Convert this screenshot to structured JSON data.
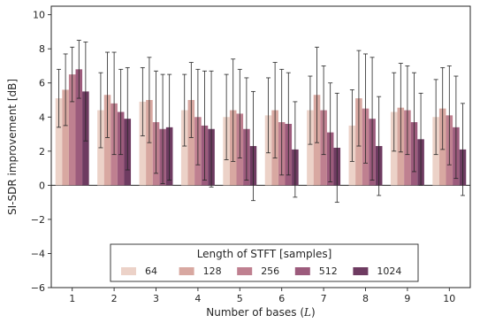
{
  "chart_data": {
    "type": "bar",
    "xlabel": "Number of bases (",
    "xlabel_var": "L",
    "xlabel_close": ")",
    "ylabel": "SI-SDR improvement [dB]",
    "ylim": [
      -6,
      10.5
    ],
    "yticks": [
      -6,
      -4,
      -2,
      0,
      2,
      4,
      6,
      8,
      10
    ],
    "ytick_labels": [
      "−6",
      "−4",
      "−2",
      "0",
      "2",
      "4",
      "6",
      "8",
      "10"
    ],
    "categories": [
      "1",
      "2",
      "3",
      "4",
      "5",
      "6",
      "7",
      "8",
      "9",
      "10"
    ],
    "grid": false,
    "error_bars": true,
    "legend": {
      "title": "Length of STFT [samples]",
      "placement": "bottom-center"
    },
    "series": [
      {
        "name": "64",
        "color": "#ecd2c8",
        "values": [
          5.1,
          4.4,
          4.9,
          4.4,
          4.0,
          4.1,
          4.4,
          3.5,
          4.3,
          4.0
        ],
        "errors": [
          1.7,
          2.2,
          2.0,
          2.1,
          2.5,
          2.2,
          2.0,
          2.1,
          2.3,
          2.2
        ]
      },
      {
        "name": "128",
        "color": "#d8a8a1",
        "values": [
          5.6,
          5.3,
          5.0,
          5.0,
          4.4,
          4.4,
          5.3,
          5.1,
          4.55,
          4.5
        ],
        "errors": [
          2.1,
          2.5,
          2.5,
          2.2,
          3.0,
          2.8,
          2.8,
          2.8,
          2.6,
          2.4
        ]
      },
      {
        "name": "256",
        "color": "#bf8090",
        "values": [
          6.5,
          4.8,
          3.7,
          4.0,
          4.2,
          3.7,
          4.4,
          4.5,
          4.4,
          4.1
        ],
        "errors": [
          1.6,
          3.0,
          3.0,
          2.8,
          2.6,
          3.1,
          2.6,
          3.2,
          2.6,
          2.9
        ]
      },
      {
        "name": "512",
        "color": "#9c5b7c",
        "values": [
          6.8,
          4.3,
          3.3,
          3.5,
          3.3,
          3.6,
          3.1,
          3.9,
          3.7,
          3.4
        ],
        "errors": [
          1.7,
          2.5,
          3.2,
          3.2,
          3.0,
          3.0,
          2.9,
          3.6,
          2.9,
          3.0
        ]
      },
      {
        "name": "1024",
        "color": "#6e3b61",
        "values": [
          5.5,
          3.9,
          3.4,
          3.3,
          2.3,
          2.1,
          2.2,
          2.3,
          2.7,
          2.1
        ],
        "errors": [
          2.9,
          3.0,
          3.1,
          3.4,
          3.2,
          2.8,
          3.2,
          2.9,
          2.7,
          2.7
        ]
      }
    ]
  }
}
